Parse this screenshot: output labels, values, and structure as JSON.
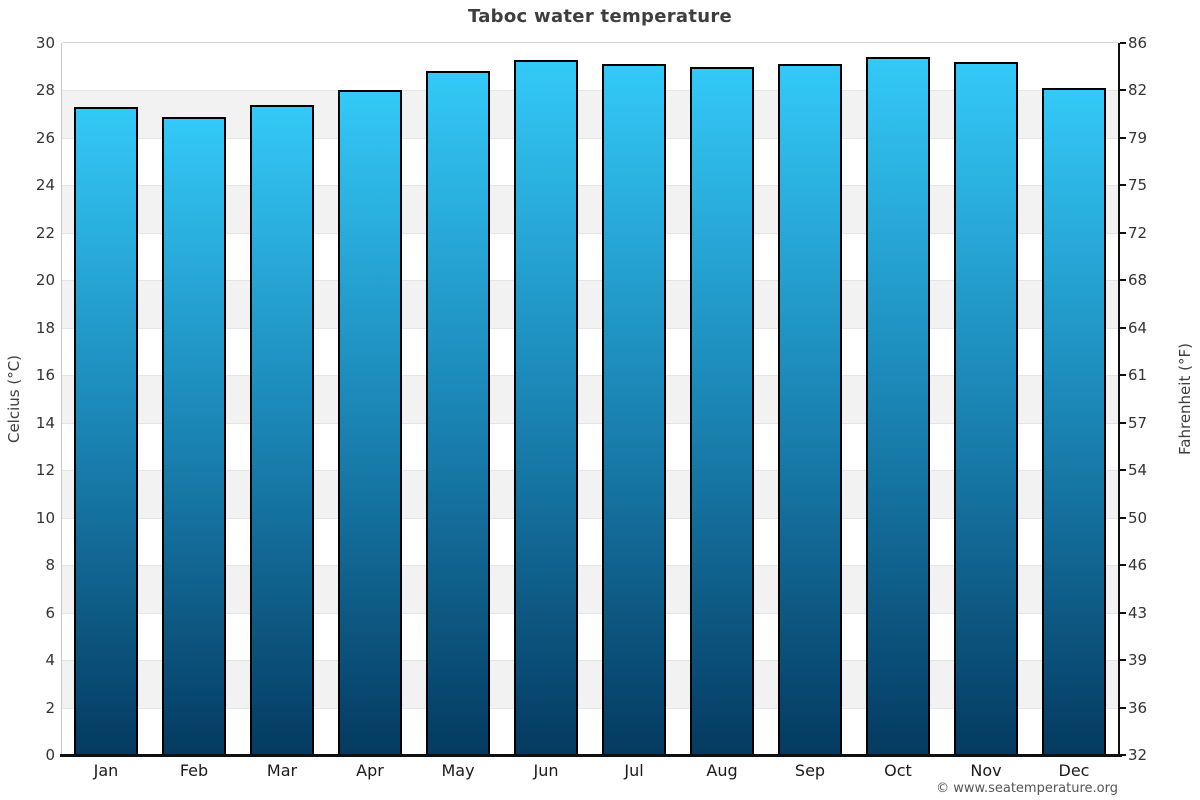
{
  "title": "Taboc water temperature",
  "footer_credit": "© www.seatemperature.org",
  "chart_data": {
    "type": "bar",
    "title": "Taboc water temperature",
    "categories": [
      "Jan",
      "Feb",
      "Mar",
      "Apr",
      "May",
      "Jun",
      "Jul",
      "Aug",
      "Sep",
      "Oct",
      "Nov",
      "Dec"
    ],
    "series": [
      {
        "name": "Water temperature (°C)",
        "values": [
          27.3,
          26.9,
          27.4,
          28.0,
          28.8,
          29.3,
          29.1,
          29.0,
          29.1,
          29.4,
          29.2,
          28.1
        ]
      }
    ],
    "ylabel_left": "Celcius (°C)",
    "ylabel_right": "Fahrenheit (°F)",
    "xlabel": "",
    "ylim": [
      0,
      30
    ],
    "yticks_celsius": [
      30,
      28,
      26,
      24,
      22,
      20,
      18,
      16,
      14,
      12,
      10,
      8,
      6,
      4,
      2,
      0
    ],
    "yticks_fahrenheit": [
      86,
      82,
      79,
      75,
      72,
      68,
      64,
      61,
      57,
      54,
      50,
      46,
      43,
      39,
      36,
      32
    ],
    "grid": "horizontal alternating bands",
    "legend_position": "none",
    "colors": {
      "bar_gradient_top": "#33c9f8",
      "bar_gradient_mid": "#1b87b7",
      "bar_gradient_bottom": "#043a60",
      "bar_border": "#000000",
      "band_light": "#ffffff",
      "band_gray": "#f2f2f2",
      "axis_left": "#c8c8c8",
      "axis_right_bottom": "#101010",
      "title_text": "#3e3e3e",
      "tick_text": "#333333",
      "footer_text": "#555555"
    }
  }
}
